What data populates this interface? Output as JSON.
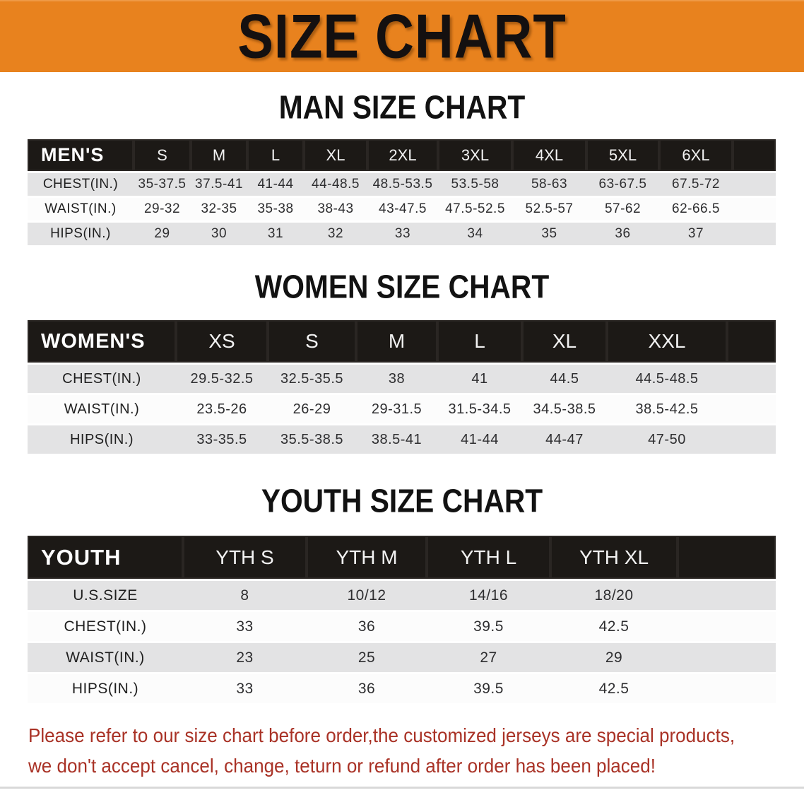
{
  "banner": {
    "title": "SIZE CHART"
  },
  "colors": {
    "banner_bg": "#E8821E",
    "table_header_bg": "#1C1916",
    "row_alt_bg": "#E3E3E4",
    "note_text": "#A93226"
  },
  "tables": [
    {
      "heading": "MAN SIZE CHART",
      "corner": "MEN'S",
      "columns": [
        "S",
        "M",
        "L",
        "XL",
        "2XL",
        "3XL",
        "4XL",
        "5XL",
        "6XL"
      ],
      "rows": [
        {
          "label": "CHEST(IN.)",
          "values": [
            "35-37.5",
            "37.5-41",
            "41-44",
            "44-48.5",
            "48.5-53.5",
            "53.5-58",
            "58-63",
            "63-67.5",
            "67.5-72"
          ]
        },
        {
          "label": "WAIST(IN.)",
          "values": [
            "29-32",
            "32-35",
            "35-38",
            "38-43",
            "43-47.5",
            "47.5-52.5",
            "52.5-57",
            "57-62",
            "62-66.5"
          ]
        },
        {
          "label": "HIPS(IN.)",
          "values": [
            "29",
            "30",
            "31",
            "32",
            "33",
            "34",
            "35",
            "36",
            "37"
          ]
        }
      ]
    },
    {
      "heading": "WOMEN SIZE CHART",
      "corner": "WOMEN'S",
      "columns": [
        "XS",
        "S",
        "M",
        "L",
        "XL",
        "XXL"
      ],
      "rows": [
        {
          "label": "CHEST(IN.)",
          "values": [
            "29.5-32.5",
            "32.5-35.5",
            "38",
            "41",
            "44.5",
            "44.5-48.5"
          ]
        },
        {
          "label": "WAIST(IN.)",
          "values": [
            "23.5-26",
            "26-29",
            "29-31.5",
            "31.5-34.5",
            "34.5-38.5",
            "38.5-42.5"
          ]
        },
        {
          "label": "HIPS(IN.)",
          "values": [
            "33-35.5",
            "35.5-38.5",
            "38.5-41",
            "41-44",
            "44-47",
            "47-50"
          ]
        }
      ]
    },
    {
      "heading": "YOUTH SIZE CHART",
      "corner": "YOUTH",
      "columns": [
        "YTH S",
        "YTH M",
        "YTH L",
        "YTH XL"
      ],
      "rows": [
        {
          "label": "U.S.SIZE",
          "values": [
            "8",
            "10/12",
            "14/16",
            "18/20"
          ]
        },
        {
          "label": "CHEST(IN.)",
          "values": [
            "33",
            "36",
            "39.5",
            "42.5"
          ]
        },
        {
          "label": "WAIST(IN.)",
          "values": [
            "23",
            "25",
            "27",
            "29"
          ]
        },
        {
          "label": "HIPS(IN.)",
          "values": [
            "33",
            "36",
            "39.5",
            "42.5"
          ]
        }
      ]
    }
  ],
  "note": {
    "line1": "Please refer to our size chart before order,the customized jerseys are special products,",
    "line2": "we don't accept cancel, change, teturn or refund after order has been placed!"
  }
}
